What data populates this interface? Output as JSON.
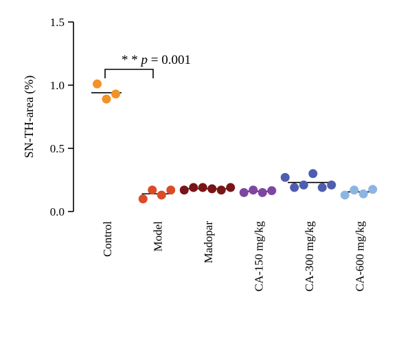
{
  "chart_data": {
    "type": "scatter",
    "title": "",
    "xlabel": "",
    "ylabel": "SN-TH-area (%)",
    "ylim": [
      0,
      1.5
    ],
    "yticks": [
      "0.0",
      "0.5",
      "1.0",
      "1.5"
    ],
    "categories": [
      "Control",
      "Model",
      "Madopar",
      "CA-150 mg/kg",
      "CA-300 mg/kg",
      "CA-600 mg/kg"
    ],
    "colors": [
      "#F39226",
      "#DB4B27",
      "#7A1416",
      "#7E45A3",
      "#4E5DAF",
      "#8CB5E2"
    ],
    "groups": [
      {
        "category": "Control",
        "values": [
          1.01,
          0.89,
          0.93
        ],
        "mean": 0.94
      },
      {
        "category": "Model",
        "values": [
          0.1,
          0.17,
          0.13,
          0.17
        ],
        "mean": 0.14
      },
      {
        "category": "Madopar",
        "values": [
          0.17,
          0.19,
          0.19,
          0.18,
          0.17,
          0.19
        ],
        "mean": 0.18
      },
      {
        "category": "CA-150 mg/kg",
        "values": [
          0.15,
          0.17,
          0.15,
          0.165
        ],
        "mean": 0.16
      },
      {
        "category": "CA-300 mg/kg",
        "values": [
          0.27,
          0.19,
          0.21,
          0.3,
          0.19,
          0.21
        ],
        "mean": 0.23
      },
      {
        "category": "CA-600 mg/kg",
        "values": [
          0.13,
          0.17,
          0.14,
          0.175
        ],
        "mean": 0.155
      }
    ],
    "annotations": [
      {
        "text_prefix": "* * ",
        "text_p": "p",
        "text_value": " = 0.001",
        "between": [
          "Control",
          "Model"
        ]
      }
    ]
  }
}
